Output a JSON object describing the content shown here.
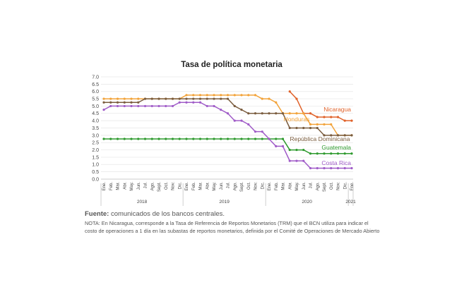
{
  "colors": {
    "nicaragua": "#e0622a",
    "honduras": "#f2a33a",
    "republica_dominicana": "#7a5c3e",
    "guatemala": "#2e9a2e",
    "costa_rica": "#a05cc8",
    "grid": "#e6e6e6",
    "axis": "#bbbbbb"
  },
  "footer": {
    "source_label": "Fuente:",
    "source_text": " comunicados de los bancos centrales.",
    "note": "NOTA: En Nicaragua, corresponde a la Tasa de Referencia de Reportos Monetarios (TRM) que el BCN utiliza para indicar el costo de operaciones a 1 día en las subastas de reportos monetarios, definida por el Comité de Operaciones de Mercado Abierto"
  },
  "chart_data": {
    "type": "line",
    "title": "Tasa de política monetaria",
    "xlabel": "",
    "ylabel": "",
    "ylim": [
      0,
      7
    ],
    "yticks": [
      "0.0",
      "0.5",
      "1.0",
      "1.5",
      "2.0",
      "2.5",
      "3.0",
      "3.5",
      "4.0",
      "4.5",
      "5.0",
      "5.5",
      "6.0",
      "6.5",
      "7.0"
    ],
    "grid": true,
    "legend": "inline labels at right end of lines",
    "categories": [
      "Ene.",
      "Feb.",
      "Mar.",
      "Abr.",
      "May.",
      "Jun.",
      "Jul.",
      "Ago.",
      "Sept.",
      "Oct.",
      "Nov.",
      "Dic.",
      "Ene.",
      "Feb.",
      "Mar.",
      "Abr.",
      "May.",
      "Jun.",
      "Jul.",
      "Ago.",
      "Sept.",
      "Oct.",
      "Nov.",
      "Dic.",
      "Ene.",
      "Feb.",
      "Mar.",
      "Abr.",
      "May.",
      "Jun.",
      "Jul.",
      "Ago.",
      "Sept.",
      "Oct.",
      "Nov.",
      "Dic.",
      "Ene."
    ],
    "years": [
      {
        "label": "2018",
        "start": 0,
        "end": 11
      },
      {
        "label": "2019",
        "start": 12,
        "end": 23
      },
      {
        "label": "2020",
        "start": 24,
        "end": 35
      },
      {
        "label": "2021",
        "start": 36,
        "end": 36
      }
    ],
    "series": [
      {
        "name": "Nicaragua",
        "color_key": "nicaragua",
        "values": [
          null,
          null,
          null,
          null,
          null,
          null,
          null,
          null,
          null,
          null,
          null,
          null,
          null,
          null,
          null,
          null,
          null,
          null,
          null,
          null,
          null,
          null,
          null,
          null,
          null,
          null,
          null,
          6.0,
          5.5,
          4.5,
          4.5,
          4.25,
          4.25,
          4.25,
          4.25,
          4.0,
          4.0
        ]
      },
      {
        "name": "Honduras",
        "color_key": "honduras",
        "values": [
          5.5,
          5.5,
          5.5,
          5.5,
          5.5,
          5.5,
          5.5,
          5.5,
          5.5,
          5.5,
          5.5,
          5.5,
          5.75,
          5.75,
          5.75,
          5.75,
          5.75,
          5.75,
          5.75,
          5.75,
          5.75,
          5.75,
          5.75,
          5.5,
          5.5,
          5.25,
          4.5,
          4.5,
          4.5,
          4.5,
          3.75,
          3.75,
          3.75,
          3.75,
          3.0,
          3.0,
          3.0
        ]
      },
      {
        "name": "República Dominicana",
        "color_key": "republica_dominicana",
        "values": [
          5.25,
          5.25,
          5.25,
          5.25,
          5.25,
          5.25,
          5.5,
          5.5,
          5.5,
          5.5,
          5.5,
          5.5,
          5.5,
          5.5,
          5.5,
          5.5,
          5.5,
          5.5,
          5.5,
          5.0,
          4.75,
          4.5,
          4.5,
          4.5,
          4.5,
          4.5,
          4.5,
          3.5,
          3.5,
          3.5,
          3.5,
          3.5,
          3.0,
          3.0,
          3.0,
          3.0,
          3.0
        ]
      },
      {
        "name": "Guatemala",
        "color_key": "guatemala",
        "values": [
          2.75,
          2.75,
          2.75,
          2.75,
          2.75,
          2.75,
          2.75,
          2.75,
          2.75,
          2.75,
          2.75,
          2.75,
          2.75,
          2.75,
          2.75,
          2.75,
          2.75,
          2.75,
          2.75,
          2.75,
          2.75,
          2.75,
          2.75,
          2.75,
          2.75,
          2.75,
          2.75,
          2.0,
          2.0,
          2.0,
          1.75,
          1.75,
          1.75,
          1.75,
          1.75,
          1.75,
          1.75
        ]
      },
      {
        "name": "Costa Rica",
        "color_key": "costa_rica",
        "values": [
          4.75,
          5.0,
          5.0,
          5.0,
          5.0,
          5.0,
          5.0,
          5.0,
          5.0,
          5.0,
          5.0,
          5.25,
          5.25,
          5.25,
          5.25,
          5.0,
          5.0,
          4.75,
          4.5,
          4.0,
          4.0,
          3.75,
          3.25,
          3.25,
          2.75,
          2.25,
          2.25,
          1.25,
          1.25,
          1.25,
          0.75,
          0.75,
          0.75,
          0.75,
          0.75,
          0.75,
          0.75
        ]
      }
    ]
  }
}
